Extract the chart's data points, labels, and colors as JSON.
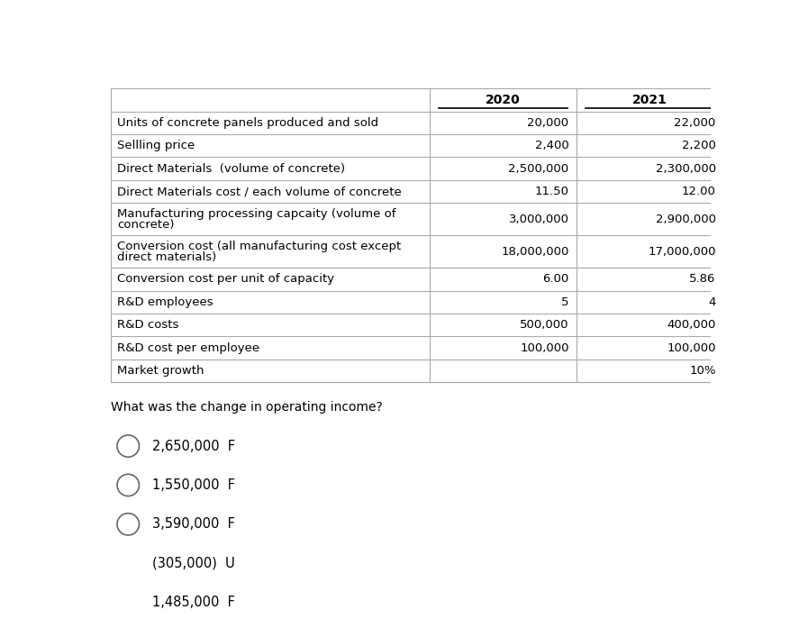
{
  "table_rows": [
    {
      "label": "",
      "val2020": "2020",
      "val2021": "2021",
      "header": true
    },
    {
      "label": "Units of concrete panels produced and sold",
      "val2020": "20,000",
      "val2021": "22,000",
      "header": false
    },
    {
      "label": "Sellling price",
      "val2020": "2,400",
      "val2021": "2,200",
      "header": false
    },
    {
      "label": "Direct Materials  (volume of concrete)",
      "val2020": "2,500,000",
      "val2021": "2,300,000",
      "header": false
    },
    {
      "label": "Direct Materials cost / each volume of concrete",
      "val2020": "11.50",
      "val2021": "12.00",
      "header": false
    },
    {
      "label": "Manufacturing processing capcaity (volume of\nconcrete)",
      "val2020": "3,000,000",
      "val2021": "2,900,000",
      "header": false
    },
    {
      "label": "Conversion cost (all manufacturing cost except\ndirect materials)",
      "val2020": "18,000,000",
      "val2021": "17,000,000",
      "header": false
    },
    {
      "label": "Conversion cost per unit of capacity",
      "val2020": "6.00",
      "val2021": "5.86",
      "header": false
    },
    {
      "label": "R&D employees",
      "val2020": "5",
      "val2021": "4",
      "header": false
    },
    {
      "label": "R&D costs",
      "val2020": "500,000",
      "val2021": "400,000",
      "header": false
    },
    {
      "label": "R&D cost per employee",
      "val2020": "100,000",
      "val2021": "100,000",
      "header": false
    },
    {
      "label": "Market growth",
      "val2020": "",
      "val2021": "10%",
      "header": false
    }
  ],
  "question": "What was the change in operating income?",
  "choices": [
    "2,650,000  F",
    "1,550,000  F",
    "3,590,000  F",
    "(305,000)  U",
    "1,485,000  F"
  ],
  "bg_color": "#ffffff",
  "text_color": "#000000",
  "grid_color": "#aaaaaa",
  "font_size": 9.5,
  "header_font_size": 10
}
